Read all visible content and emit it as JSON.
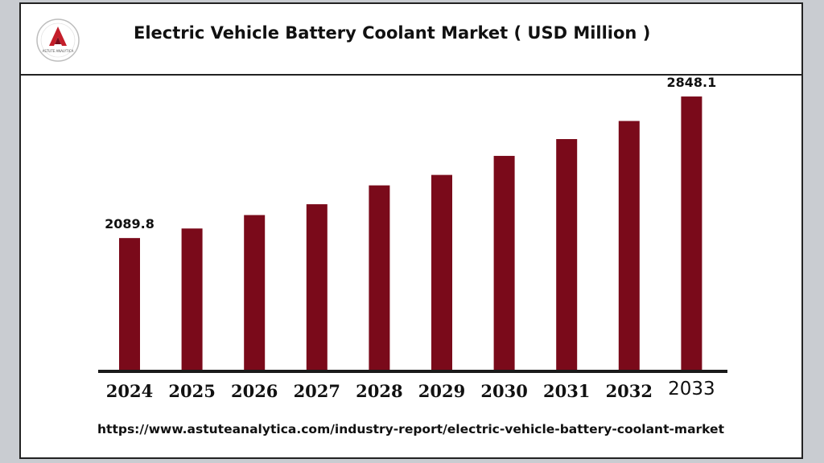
{
  "header": {
    "title": "Electric Vehicle Battery Coolant Market ( USD Million )",
    "logo_icon": "astute-analytica-logo-icon",
    "logo_text": "ASTUTE ANALYTICA"
  },
  "colors": {
    "bar": "#7a0a1a",
    "axis": "#1a1a1a",
    "text": "#111111"
  },
  "chart_data": {
    "type": "bar",
    "title": "Electric Vehicle Battery Coolant Market ( USD Million )",
    "xlabel": "",
    "ylabel": "",
    "categories": [
      "2024",
      "2025",
      "2026",
      "2027",
      "2028",
      "2029",
      "2030",
      "2031",
      "2032",
      "2033"
    ],
    "values": [
      2089.8,
      2141,
      2213,
      2271,
      2372,
      2428,
      2530,
      2620,
      2717,
      2848.1
    ],
    "data_labels": [
      "2089.8",
      "",
      "",
      "",
      "",
      "",
      "",
      "",
      "",
      "2848.1"
    ],
    "ylim": [
      1380,
      2900
    ],
    "grid": false,
    "legend": "none"
  },
  "footer": {
    "source_url": "https://www.astuteanalytica.com/industry-report/electric-vehicle-battery-coolant-market"
  }
}
